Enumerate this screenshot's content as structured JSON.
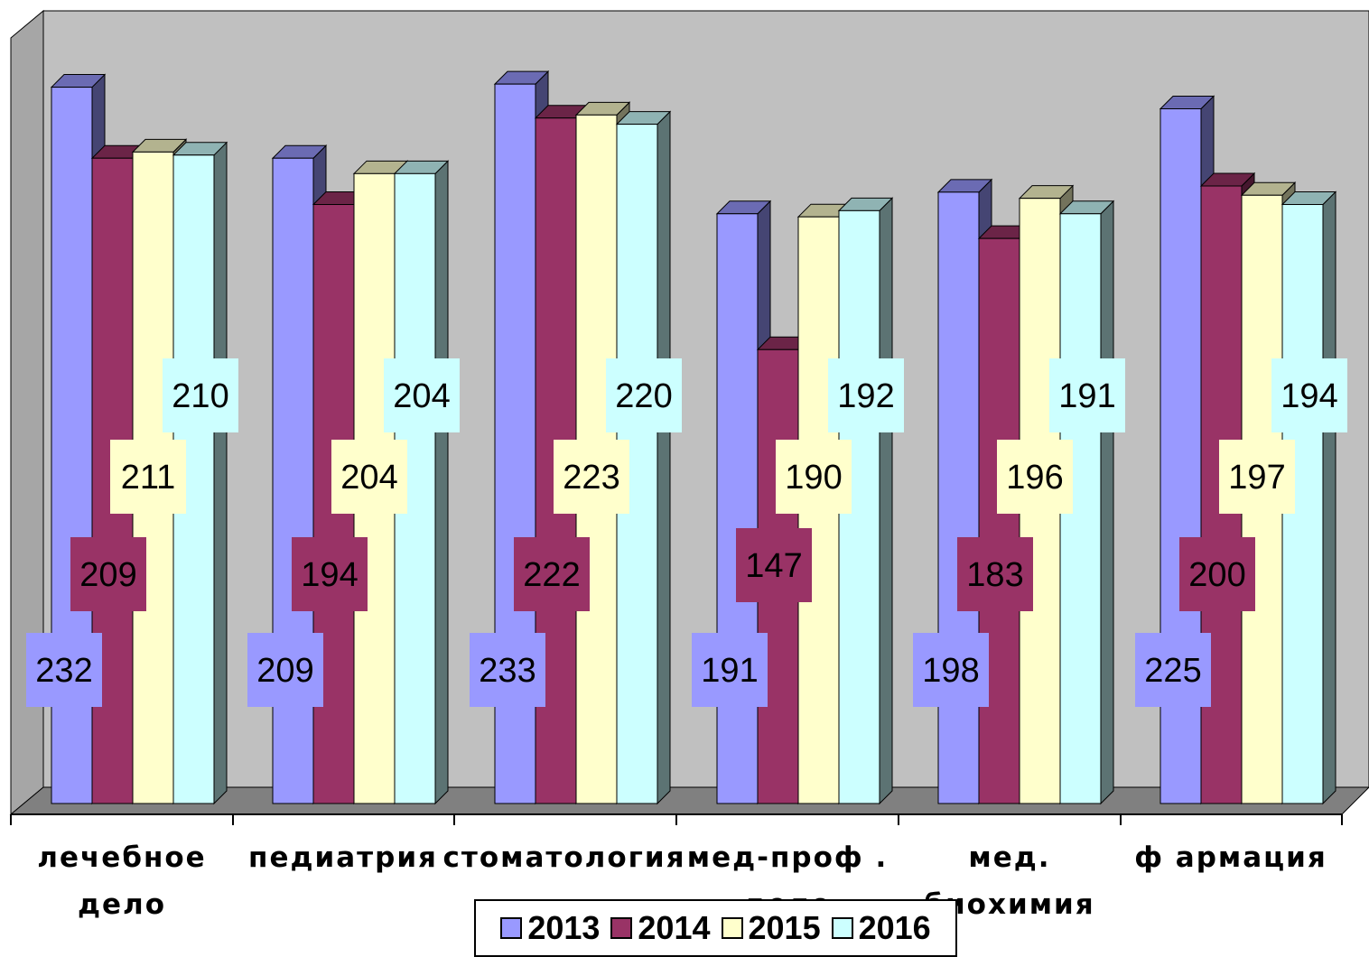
{
  "chart_data": {
    "type": "bar",
    "categories": [
      "лечебное дело",
      "педиатрия",
      "стоматология",
      "мед-проф . дело",
      "мед. биохимия",
      "ф армация"
    ],
    "category_lines": [
      [
        "лечебное",
        "дело"
      ],
      [
        "педиатрия"
      ],
      [
        "стоматология"
      ],
      [
        "мед-проф .",
        "дело"
      ],
      [
        "мед.",
        "биохимия"
      ],
      [
        "ф армация"
      ]
    ],
    "series": [
      {
        "name": "2013",
        "values": [
          232,
          209,
          233,
          191,
          198,
          225
        ],
        "color": "#9999ff"
      },
      {
        "name": "2014",
        "values": [
          209,
          194,
          222,
          147,
          183,
          200
        ],
        "color": "#993366"
      },
      {
        "name": "2015",
        "values": [
          211,
          204,
          223,
          190,
          196,
          197
        ],
        "color": "#ffffcc"
      },
      {
        "name": "2016",
        "values": [
          210,
          204,
          220,
          192,
          191,
          194
        ],
        "color": "#ccffff"
      }
    ],
    "legend_position": "bottom",
    "walls_color": "#c0c0c0",
    "floor_color": "#808080"
  }
}
